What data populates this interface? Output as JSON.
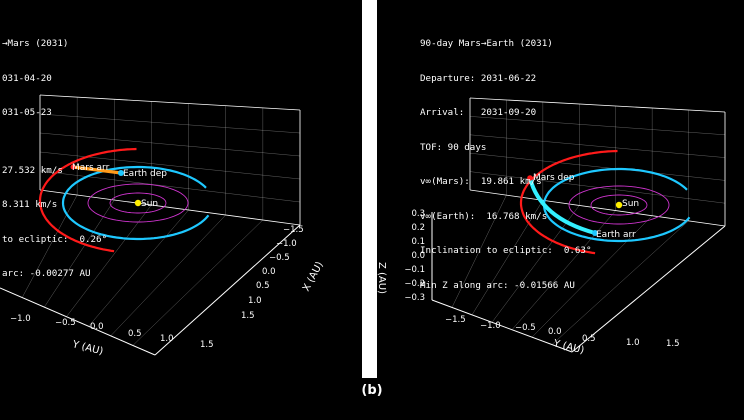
{
  "colors": {
    "background": "#000000",
    "frame": "#ffffff",
    "grid": "#ffffff",
    "earth_orbit": "#1ec8ff",
    "mars_orbit": "#ff1a1a",
    "ref_circles": "#cc33cc",
    "transfer_left": "#ff9a1a",
    "transfer_right": "#33f0ff",
    "sun": "#ffee00",
    "text": "#ffffff"
  },
  "panel_label": "(b)",
  "left": {
    "info": [
      "→Mars (2031)",
      "031-04-20",
      "031-05-23",
      "",
      "27.532 km/s",
      "8.311 km/s",
      "to ecliptic:  0.26°",
      "arc: -0.00277 AU"
    ],
    "labels": {
      "arrival": "Mars arr",
      "departure": "Earth dep",
      "sun": "Sun"
    }
  },
  "right": {
    "info": [
      "90-day Mars→Earth (2031)",
      "Departure: 2031-06-22",
      "Arrival:   2031-09-20",
      "TOF: 90 days",
      "v∞(Mars):  19.861 km/s",
      "v∞(Earth):  16.768 km/s",
      "Inclination to ecliptic:  0.63°",
      "Min Z along arc: -0.01566 AU"
    ],
    "labels": {
      "departure": "Mars dep",
      "arrival": "Earth arr",
      "sun": "Sun"
    }
  },
  "chart_data": [
    {
      "type": "line",
      "view": "3d",
      "xlabel": "X (AU)",
      "ylabel": "Y (AU)",
      "zlabel": "",
      "x_ticks": [
        "−1.5",
        "−1.0",
        "−0.5",
        "0.0",
        "0.5",
        "1.0",
        "1.5"
      ],
      "y_ticks": [
        "−1.0",
        "−0.5",
        "0.0",
        "0.5",
        "1.0",
        "1.5"
      ],
      "z_ticks": [],
      "grid": true,
      "series": [
        {
          "name": "Earth",
          "radius_au": 1.0
        },
        {
          "name": "Mars",
          "radius_au": 1.52
        }
      ],
      "ref_circle_radii_au": [
        0.39,
        0.72
      ]
    },
    {
      "type": "line",
      "view": "3d",
      "xlabel": "",
      "ylabel": "Y (AU)",
      "zlabel": "Z (AU)",
      "x_ticks": [],
      "y_ticks": [
        "−1.5",
        "−1.0",
        "−0.5",
        "0.0",
        "0.5",
        "1.0",
        "1.5"
      ],
      "z_ticks": [
        "0.3",
        "0.2",
        "0.1",
        "0.0",
        "−0.1",
        "−0.2",
        "−0.3"
      ],
      "grid": true,
      "series": [
        {
          "name": "Earth",
          "radius_au": 1.0
        },
        {
          "name": "Mars",
          "radius_au": 1.52
        }
      ],
      "ref_circle_radii_au": [
        0.39,
        0.72
      ]
    }
  ]
}
